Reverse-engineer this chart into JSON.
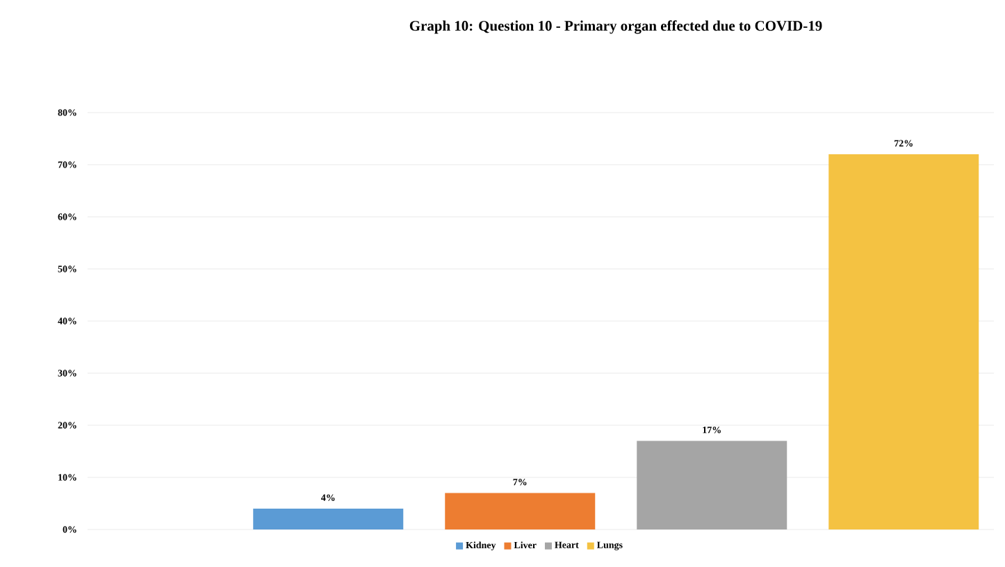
{
  "chart_data": {
    "type": "bar",
    "title": "Graph 10: Question 10 - Primary organ effected due to COVID-19",
    "categories": [
      null
    ],
    "series": [
      {
        "name": "Kidney",
        "color": "#5b9bd5",
        "values": [
          4
        ],
        "value_labels": [
          "4%"
        ]
      },
      {
        "name": "Liver",
        "color": "#ed7d31",
        "values": [
          7
        ],
        "value_labels": [
          "7%"
        ]
      },
      {
        "name": "Heart",
        "color": "#a5a5a5",
        "values": [
          17
        ],
        "value_labels": [
          "17%"
        ]
      },
      {
        "name": "Lungs",
        "color": "#f4c242",
        "values": [
          72
        ],
        "value_labels": [
          "72%"
        ]
      }
    ],
    "ylim": [
      0,
      80
    ],
    "yticks": [
      {
        "value": 0,
        "label": "0%"
      },
      {
        "value": 10,
        "label": "10%"
      },
      {
        "value": 20,
        "label": "20%"
      },
      {
        "value": 30,
        "label": "30%"
      },
      {
        "value": 40,
        "label": "40%"
      },
      {
        "value": 50,
        "label": "50%"
      },
      {
        "value": 60,
        "label": "60%"
      },
      {
        "value": 70,
        "label": "70%"
      },
      {
        "value": 80,
        "label": "80%"
      }
    ],
    "grid": "y",
    "legend": "bottom"
  }
}
